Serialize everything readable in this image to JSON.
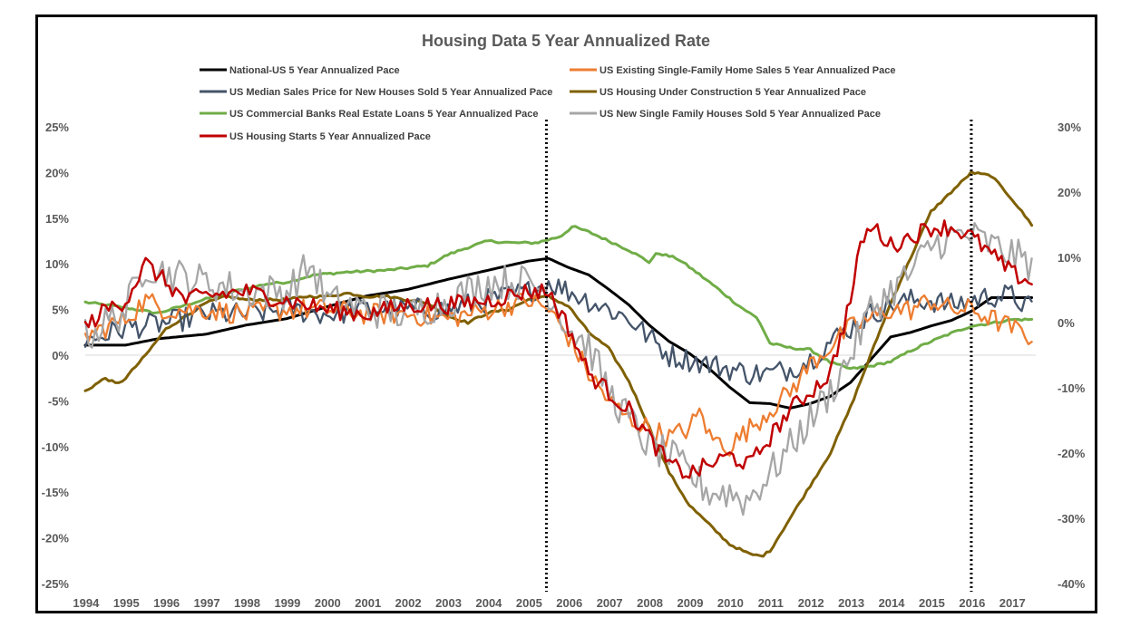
{
  "chart_data": {
    "type": "line",
    "title": "Housing Data 5 Year Annualized Rate",
    "xlabel": "",
    "ylabel": "",
    "x_range": [
      1994,
      2017.6
    ],
    "x_ticks": [
      "1994",
      "1995",
      "1996",
      "1997",
      "1998",
      "1999",
      "2000",
      "2001",
      "2002",
      "2003",
      "2004",
      "2005",
      "2006",
      "2007",
      "2008",
      "2009",
      "2010",
      "2011",
      "2012",
      "2013",
      "2014",
      "2015",
      "2016",
      "2017"
    ],
    "ylim_left": [
      -25,
      25
    ],
    "ylim_right": [
      -40,
      30
    ],
    "y_ticks_left": [
      "25%",
      "20%",
      "15%",
      "10%",
      "5%",
      "0%",
      "-5%",
      "-10%",
      "-15%",
      "-20%",
      "-25%"
    ],
    "y_ticks_right": [
      "30%",
      "20%",
      "10%",
      "0%",
      "-10%",
      "-20%",
      "-30%",
      "-40%"
    ],
    "vertical_markers": [
      2005.45,
      2016.0
    ],
    "legend": [
      "National-US 5 Year Annualized Pace",
      "US Existing Single-Family Home Sales 5 Year Annualized Pace",
      "US Median Sales Price for New Houses Sold  5 Year Annualized Pace",
      "US Housing Under Construction 5 Year Annualized Pace",
      "US Commercial Banks Real Estate Loans 5 Year Annualized Pace",
      "US New Single Family Houses Sold 5 Year Annualized Pace",
      "US Housing Starts 5 Year Annualized Pace"
    ],
    "series": [
      {
        "name": "National-US 5 Year Annualized Pace",
        "color": "#000000",
        "axis": "left",
        "noise": 0,
        "width": 3,
        "x": [
          1994,
          1995,
          1995.8,
          1997,
          1998,
          1999,
          2000,
          2001,
          2002,
          2003,
          2004,
          2005,
          2005.5,
          2006,
          2006.5,
          2007,
          2007.5,
          2008,
          2008.5,
          2009,
          2009.5,
          2010,
          2010.5,
          2011,
          2011.5,
          2012,
          2012.5,
          2013,
          2013.5,
          2014,
          2014.5,
          2015,
          2015.5,
          2016,
          2016.5,
          2017,
          2017.5
        ],
        "y": [
          1.1,
          1.1,
          1.8,
          2.3,
          3.3,
          4.0,
          5.3,
          6.5,
          7.2,
          8.3,
          9.3,
          10.3,
          10.6,
          9.6,
          8.8,
          7.2,
          5.5,
          3.3,
          1.5,
          0.2,
          -1.5,
          -3.5,
          -5.2,
          -5.3,
          -5.8,
          -5.3,
          -4.5,
          -3.0,
          -0.5,
          2.0,
          2.5,
          3.2,
          3.8,
          4.8,
          6.3,
          6.3,
          6.3
        ]
      },
      {
        "name": "US Commercial Banks Real Estate Loans 5 Year Annualized Pace",
        "color": "#70AD47",
        "axis": "left",
        "noise": 0.12,
        "width": 3,
        "x": [
          1994,
          1995,
          1995.8,
          1996.5,
          1997.5,
          1998.5,
          1999,
          1999.7,
          2000.5,
          2001.5,
          2002.5,
          2003,
          2003.5,
          2004,
          2004.6,
          2005.2,
          2005.8,
          2006.1,
          2006.5,
          2007,
          2007.5,
          2008,
          2008.2,
          2008.7,
          2009.2,
          2009.7,
          2010.2,
          2010.7,
          2011,
          2011.5,
          2012,
          2012.5,
          2013,
          2013.5,
          2014,
          2014.5,
          2015,
          2015.5,
          2016,
          2016.5,
          2017,
          2017.5
        ],
        "y": [
          5.8,
          5.2,
          4.6,
          5.5,
          6.8,
          7.8,
          8.0,
          8.8,
          9.1,
          9.3,
          9.8,
          11.0,
          11.8,
          12.5,
          12.3,
          12.3,
          13.0,
          14.1,
          13.5,
          12.5,
          11.5,
          10.2,
          11.2,
          10.6,
          9.0,
          7.3,
          5.5,
          4.0,
          1.3,
          0.8,
          0.6,
          -0.8,
          -1.5,
          -1.2,
          -0.7,
          0.5,
          1.5,
          2.4,
          3.2,
          3.5,
          3.9,
          3.9
        ]
      },
      {
        "name": "US Housing Under Construction 5 Year Annualized Pace",
        "color": "#7F6000",
        "axis": "right",
        "noise": 0.18,
        "width": 3,
        "x": [
          1994,
          1994.5,
          1994.8,
          1995,
          1995.5,
          1996,
          1996.5,
          1997,
          1997.5,
          1998,
          1998.5,
          1999,
          1999.5,
          2000,
          2000.5,
          2001,
          2001.5,
          2002,
          2002.5,
          2003,
          2003.5,
          2004,
          2004.5,
          2005,
          2005.5,
          2006,
          2006.5,
          2007,
          2007.5,
          2008,
          2008.5,
          2009,
          2009.5,
          2010,
          2010.5,
          2010.8,
          2011,
          2011.5,
          2012,
          2012.5,
          2013,
          2013.5,
          2014,
          2014.5,
          2015,
          2015.5,
          2016,
          2016.5,
          2017,
          2017.5
        ],
        "y": [
          -10.5,
          -8.5,
          -9.5,
          -8.5,
          -5,
          -1,
          1,
          3,
          4,
          3.5,
          3.5,
          3.5,
          4,
          4,
          4.5,
          4,
          4,
          3.5,
          3,
          1,
          0,
          1.5,
          2,
          3.5,
          4,
          2.5,
          -1.5,
          -4,
          -9,
          -16,
          -23,
          -28,
          -31,
          -34,
          -35.5,
          -35.8,
          -35,
          -30,
          -25,
          -20,
          -13,
          -5,
          3,
          10,
          17,
          20,
          23,
          22.5,
          19,
          15
        ]
      },
      {
        "name": "US Median Sales Price for New Houses Sold  5 Year Annualized Pace",
        "color": "#44546A",
        "axis": "left",
        "noise": 1.3,
        "width": 2.3,
        "x": [
          1994,
          1995,
          1996,
          1997,
          1998,
          1999,
          2000,
          2001,
          2002,
          2003,
          2004,
          2005,
          2005.5,
          2006,
          2006.5,
          2007,
          2007.5,
          2008,
          2008.5,
          2009,
          2009.5,
          2010,
          2010.5,
          2011,
          2011.5,
          2012,
          2012.5,
          2013,
          2013.5,
          2014,
          2014.5,
          2015,
          2015.5,
          2016,
          2016.5,
          2017,
          2017.5
        ],
        "y": [
          1.5,
          3,
          3.5,
          4.5,
          4.5,
          5,
          4.5,
          5,
          5,
          5,
          6,
          7,
          8,
          7,
          6,
          5,
          4,
          2,
          0,
          -0.5,
          -1,
          -1.5,
          -2,
          -2,
          -1.5,
          -0.5,
          1.5,
          3,
          4.5,
          5.5,
          6,
          6,
          5.5,
          6,
          6.5,
          6.5,
          5
        ]
      },
      {
        "name": "US Existing Single-Family Home Sales 5 Year Annualized Pace",
        "color": "#ED7D31",
        "axis": "left",
        "noise": 1.2,
        "width": 2.3,
        "x": [
          1994,
          1995,
          1995.5,
          1996,
          1997,
          1998,
          1999,
          2000,
          2001,
          2002,
          2003,
          2004,
          2005,
          2005.5,
          2006,
          2006.5,
          2007,
          2007.5,
          2008,
          2008.5,
          2009,
          2009.3,
          2009.5,
          2010,
          2010.5,
          2011,
          2011.5,
          2012,
          2012.5,
          2013,
          2013.5,
          2014,
          2014.5,
          2015,
          2015.5,
          2016,
          2016.5,
          2017,
          2017.5
        ],
        "y": [
          2,
          4,
          6,
          5,
          5,
          4.5,
          5,
          5,
          4.5,
          4.5,
          4,
          5,
          6,
          5,
          2,
          -2,
          -5,
          -7,
          -8,
          -9,
          -8,
          -6,
          -9,
          -10,
          -8,
          -6,
          -4,
          -1,
          1,
          3,
          4,
          5,
          5,
          6,
          5,
          5,
          4,
          3,
          2
        ]
      },
      {
        "name": "US New Single Family Houses Sold 5 Year Annualized Pace",
        "color": "#A6A6A6",
        "axis": "left",
        "noise": 2.0,
        "width": 2.3,
        "x": [
          1994,
          1995,
          1995.5,
          1996,
          1997,
          1998,
          1999,
          1999.6,
          2000,
          2001,
          2002,
          2003,
          2004,
          2005,
          2005.5,
          2006,
          2006.5,
          2007,
          2007.5,
          2008,
          2008.5,
          2009,
          2009.5,
          2010,
          2010.4,
          2011,
          2011.5,
          2012,
          2012.5,
          2013,
          2013.5,
          2014,
          2014.5,
          2015,
          2015.5,
          2016,
          2016.5,
          2017,
          2017.5
        ],
        "y": [
          2,
          5,
          10,
          9,
          8,
          7,
          7,
          10,
          6,
          5,
          4.5,
          6,
          8,
          8,
          7,
          3,
          1,
          -4,
          -7,
          -10,
          -11,
          -13,
          -15,
          -15,
          -16,
          -13,
          -10,
          -7,
          -4,
          0,
          5,
          7,
          9,
          12,
          13,
          13,
          12,
          11,
          10
        ]
      },
      {
        "name": "US Housing Starts 5 Year Annualized Pace",
        "color": "#C00000",
        "axis": "left",
        "noise": 1.0,
        "width": 2.5,
        "x": [
          1994,
          1994.5,
          1995,
          1995.5,
          1996,
          1996.5,
          1997,
          1998,
          1999,
          2000,
          2001,
          2002,
          2003,
          2004,
          2005,
          2005.5,
          2006,
          2006.5,
          2007,
          2007.5,
          2008,
          2008.5,
          2009,
          2009.5,
          2010,
          2010.5,
          2011,
          2011.5,
          2012,
          2012.5,
          2013,
          2013.3,
          2013.6,
          2014,
          2014.5,
          2015,
          2015.5,
          2016,
          2016.5,
          2017,
          2017.5
        ],
        "y": [
          3,
          5,
          6,
          10,
          8,
          6,
          6.5,
          7,
          6,
          5,
          4.5,
          5.5,
          5.5,
          6,
          7,
          7,
          3,
          -2,
          -4,
          -6,
          -9,
          -12,
          -13,
          -12,
          -11,
          -12,
          -9,
          -6,
          -4,
          -2,
          6,
          13,
          14,
          12,
          13,
          14,
          14,
          13,
          11,
          9,
          8
        ]
      }
    ]
  }
}
